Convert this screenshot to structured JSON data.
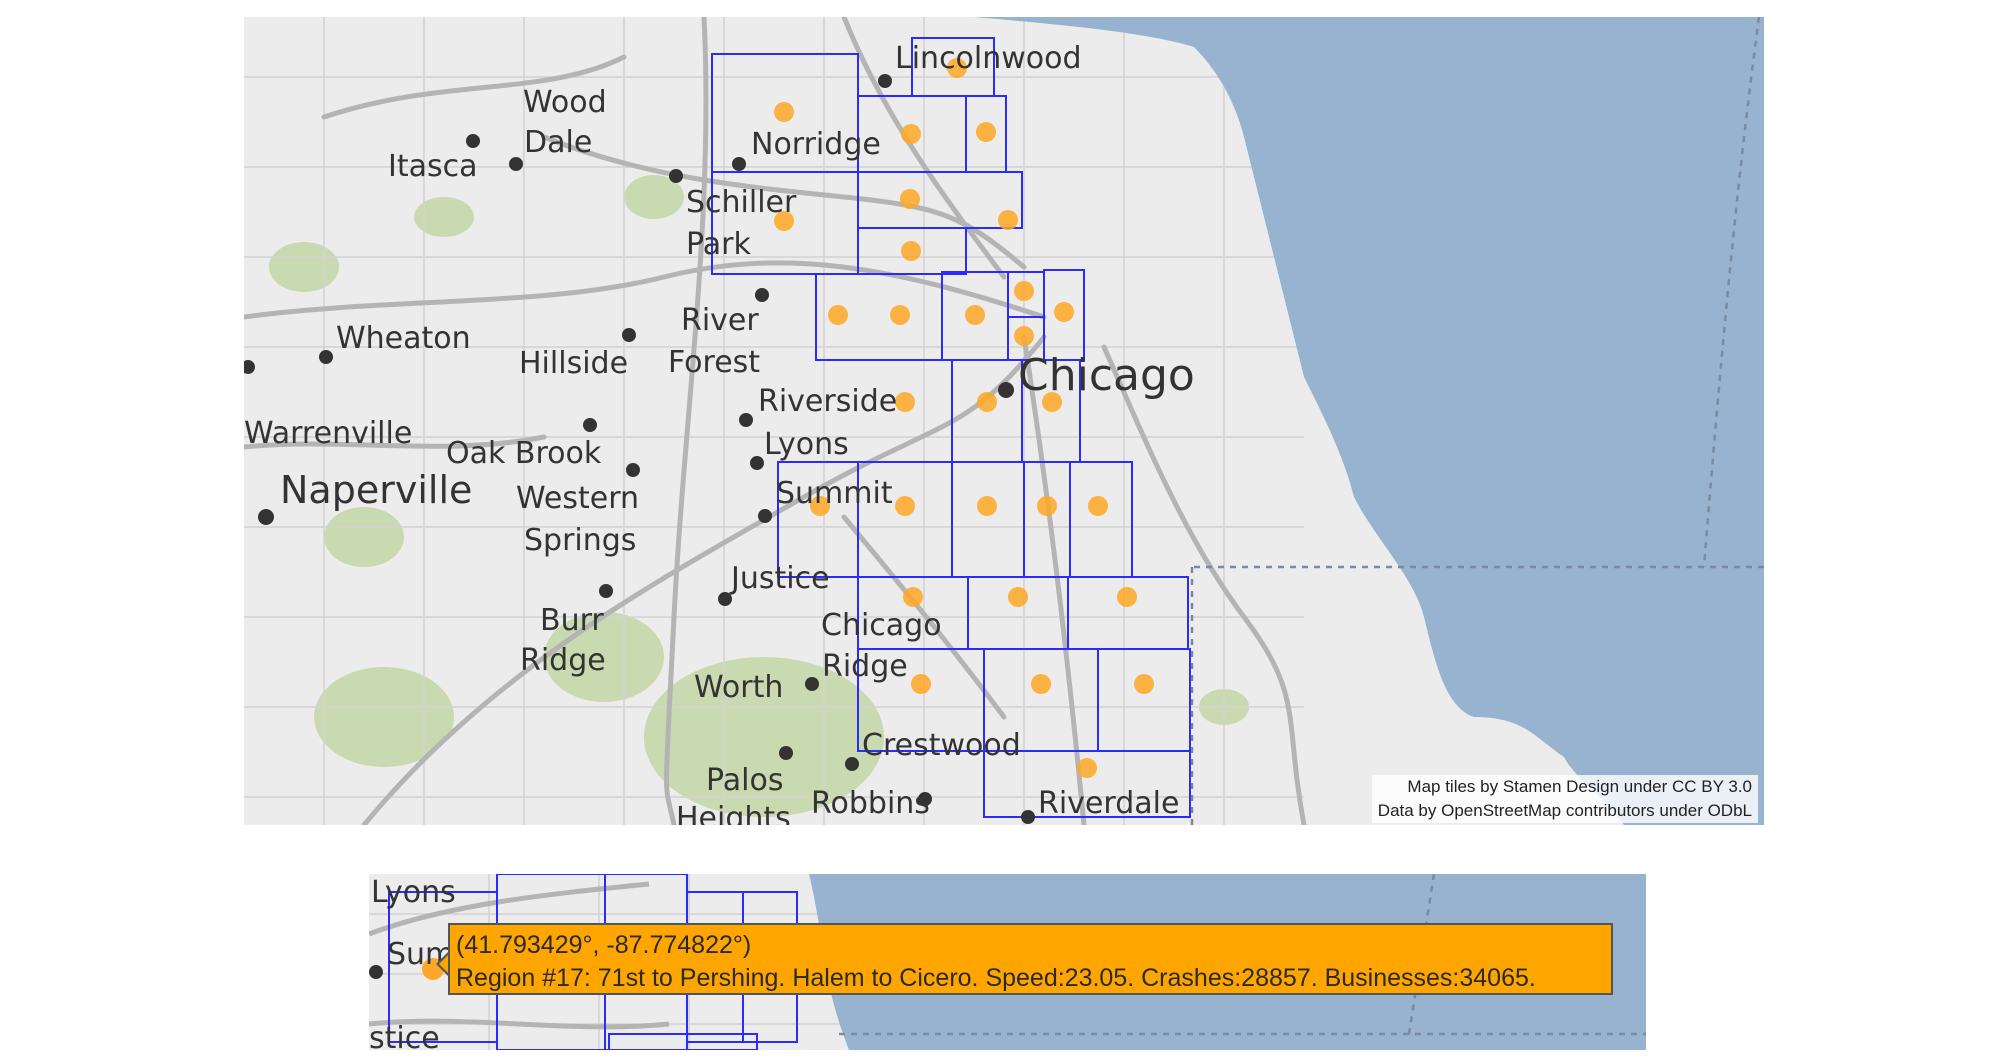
{
  "colors": {
    "water": "#98b3d0",
    "land": "#ececec",
    "park": "#c9d9b0",
    "road": "#b7b7b7",
    "region_border": "#2b2bff",
    "centroid": "#ffa726",
    "tooltip_bg": "#ffa500"
  },
  "places": [
    {
      "name": "Lincolnwood"
    },
    {
      "name": "Wood"
    },
    {
      "name": "Dale"
    },
    {
      "name": "Norridge"
    },
    {
      "name": "Itasca"
    },
    {
      "name": "Schiller"
    },
    {
      "name": "Park"
    },
    {
      "name": "River"
    },
    {
      "name": "Forest"
    },
    {
      "name": "Wheaton"
    },
    {
      "name": "Hillside"
    },
    {
      "name": "Chicago"
    },
    {
      "name": "Riverside"
    },
    {
      "name": "Warrenville"
    },
    {
      "name": "Oak Brook"
    },
    {
      "name": "Lyons"
    },
    {
      "name": "Naperville"
    },
    {
      "name": "Western"
    },
    {
      "name": "Springs"
    },
    {
      "name": "Summit"
    },
    {
      "name": "Justice"
    },
    {
      "name": "Burr"
    },
    {
      "name": "Ridge"
    },
    {
      "name": "Chicago"
    },
    {
      "name": "Ridge"
    },
    {
      "name": "Worth"
    },
    {
      "name": "Crestwood"
    },
    {
      "name": "Palos"
    },
    {
      "name": "Heights"
    },
    {
      "name": "Robbins"
    },
    {
      "name": "Riverdale"
    }
  ],
  "attribution": {
    "line1": "Map tiles by Stamen Design under CC BY 3.0",
    "line2": "Data by OpenStreetMap contributors under ODbL"
  },
  "zoom_view": {
    "places": [
      {
        "name": "Lyons"
      },
      {
        "name": "Sum"
      },
      {
        "name": "stice"
      }
    ],
    "tooltip": {
      "coords": "(41.793429°, -87.774822°)",
      "text": "Region #17: 71st to Pershing. Halem to Cicero. Speed:23.05. Crashes:28857. Businesses:34065."
    }
  }
}
